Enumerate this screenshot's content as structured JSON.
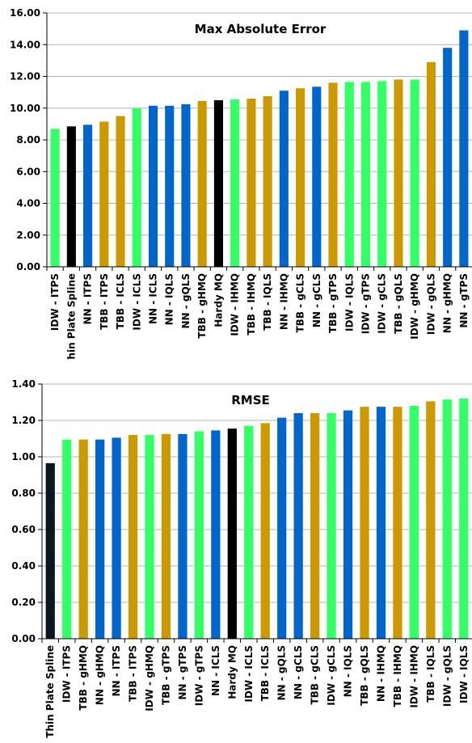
{
  "colors": {
    "green": "#33ff66",
    "black": "#000000",
    "black_dark": "#0a1622",
    "blue": "#0066cc",
    "gold": "#cc9900",
    "grid": "#b3b3b3"
  },
  "chart_data": [
    {
      "type": "bar",
      "title": "Max Absolute Error",
      "xlabel": "",
      "ylabel": "",
      "ylim": [
        0,
        16
      ],
      "yticks": [
        "0.00",
        "2.00",
        "4.00",
        "6.00",
        "8.00",
        "10.00",
        "12.00",
        "14.00",
        "16.00"
      ],
      "grid": true,
      "legend": "none",
      "categories": [
        "IDW - ITPS",
        "Thin Plate Spline",
        "NN - ITPS",
        "TBB - ITPS",
        "TBB - ICLS",
        "IDW - ICLS",
        "NN - ICLS",
        "NN - IQLS",
        "NN - gQLS",
        "TBB - gHMQ",
        "Hardy MQ",
        "IDW - IHMQ",
        "TBB - IHMQ",
        "TBB - IQLS",
        "NN - IHMQ",
        "TBB - gCLS",
        "NN - gCLS",
        "TBB - gTPS",
        "IDW - IQLS",
        "IDW - gTPS",
        "IDW - gCLS",
        "TBB - gQLS",
        "IDW - gHMQ",
        "IDW - gQLS",
        "NN - gHMQ",
        "NN - gTPS"
      ],
      "values": [
        8.7,
        8.85,
        8.95,
        9.15,
        9.5,
        9.98,
        10.15,
        10.15,
        10.25,
        10.45,
        10.5,
        10.55,
        10.6,
        10.75,
        11.1,
        11.25,
        11.35,
        11.6,
        11.65,
        11.65,
        11.7,
        11.8,
        11.8,
        12.9,
        13.8,
        14.9
      ],
      "colors": [
        "green",
        "black",
        "blue",
        "gold",
        "gold",
        "green",
        "blue",
        "blue",
        "blue",
        "gold",
        "black",
        "green",
        "gold",
        "gold",
        "blue",
        "gold",
        "blue",
        "gold",
        "green",
        "green",
        "green",
        "gold",
        "green",
        "gold",
        "blue",
        "blue"
      ]
    },
    {
      "type": "bar",
      "title": "RMSE",
      "xlabel": "",
      "ylabel": "",
      "ylim": [
        0,
        1.4
      ],
      "yticks": [
        "0.00",
        "0.20",
        "0.40",
        "0.60",
        "0.80",
        "1.00",
        "1.20",
        "1.40"
      ],
      "grid": true,
      "legend": "none",
      "categories": [
        "Thin Plate Spline",
        "IDW - ITPS",
        "TBB - gHMQ",
        "NN - gHMQ",
        "NN - ITPS",
        "TBB - ITPS",
        "IDW - gHMQ",
        "TBB - gTPS",
        "NN - gTPS",
        "IDW - gTPS",
        "NN - ICLS",
        "Hardy MQ",
        "IDW - ICLS",
        "TBB - ICLS",
        "NN - gQLS",
        "NN - gCLS",
        "TBB - gCLS",
        "IDW - gCLS",
        "NN - IQLS",
        "TBB - gQLS",
        "NN - IHMQ",
        "TBB - IHMQ",
        "IDW - IHMQ",
        "TBB - IQLS",
        "IDW - gQLS",
        "IDW - IQLS"
      ],
      "values": [
        0.965,
        1.095,
        1.095,
        1.095,
        1.105,
        1.12,
        1.12,
        1.125,
        1.125,
        1.14,
        1.145,
        1.155,
        1.17,
        1.185,
        1.215,
        1.24,
        1.24,
        1.24,
        1.255,
        1.275,
        1.275,
        1.275,
        1.28,
        1.305,
        1.315,
        1.32
      ],
      "colors": [
        "black_dark",
        "green",
        "gold",
        "blue",
        "blue",
        "gold",
        "green",
        "gold",
        "blue",
        "green",
        "blue",
        "black",
        "green",
        "gold",
        "blue",
        "blue",
        "gold",
        "green",
        "blue",
        "gold",
        "blue",
        "gold",
        "green",
        "gold",
        "green",
        "green"
      ]
    }
  ]
}
